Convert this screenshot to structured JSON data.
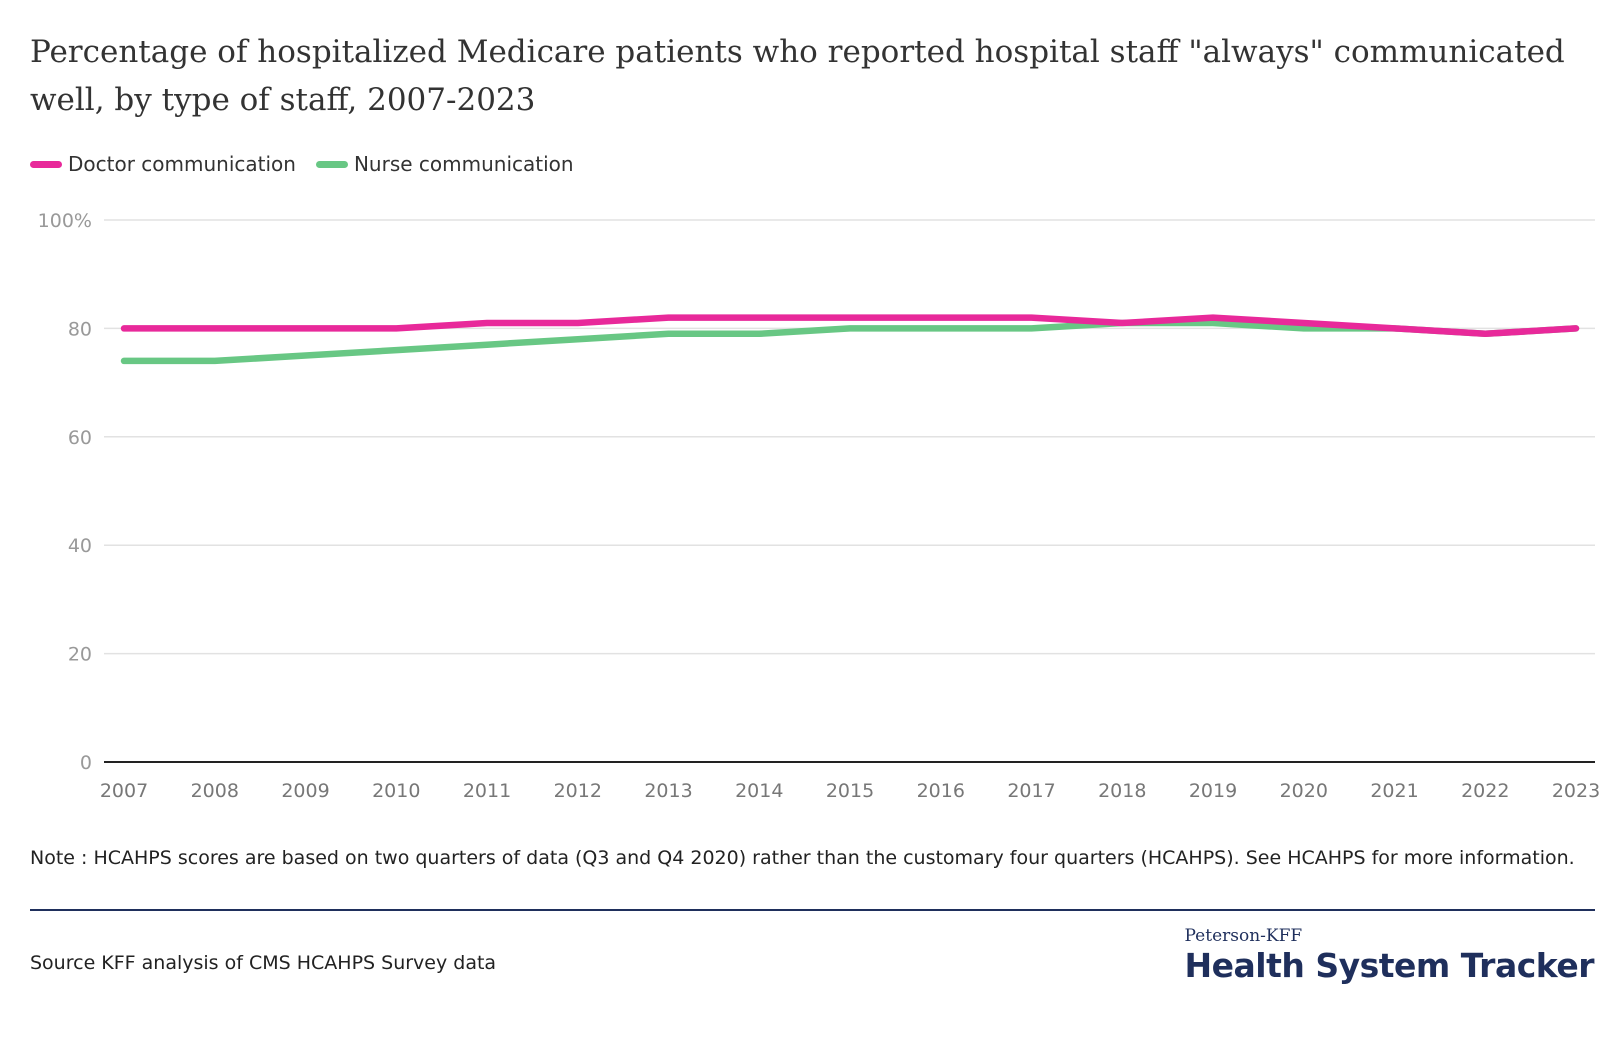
{
  "title": "Percentage of hospitalized Medicare patients who reported hospital staff \"always\" communicated well, by type of staff, 2007-2023",
  "colors": {
    "doctor": "#e8299a",
    "nurse": "#68c784",
    "grid": "#e2e2e2",
    "axis": "#222222",
    "brand": "#1f2f5c"
  },
  "chart_data": {
    "type": "line",
    "title": "Percentage of hospitalized Medicare patients who reported hospital staff \"always\" communicated well, by type of staff, 2007-2023",
    "x": [
      "2007",
      "2008",
      "2009",
      "2010",
      "2011",
      "2012",
      "2013",
      "2014",
      "2015",
      "2016",
      "2017",
      "2018",
      "2019",
      "2020",
      "2021",
      "2022",
      "2023"
    ],
    "series": [
      {
        "name": "Doctor communication",
        "color": "#e8299a",
        "values": [
          80,
          80,
          80,
          80,
          81,
          81,
          82,
          82,
          82,
          82,
          82,
          81,
          82,
          81,
          80,
          79,
          80
        ]
      },
      {
        "name": "Nurse communication",
        "color": "#68c784",
        "values": [
          74,
          74,
          75,
          76,
          77,
          78,
          79,
          79,
          80,
          80,
          80,
          81,
          81,
          80,
          80,
          79,
          80
        ]
      }
    ],
    "y_ticks": [
      "0",
      "20",
      "40",
      "60",
      "80",
      "100%"
    ],
    "y_tick_values": [
      0,
      20,
      40,
      60,
      80,
      100
    ],
    "ylim": [
      0,
      100
    ],
    "xlabel": "",
    "ylabel": "",
    "grid": true,
    "legend": "top-left"
  },
  "note": "Note : HCAHPS scores are based on two quarters of data (Q3 and Q4 2020) rather than the customary four quarters (HCAHPS). See HCAHPS for more information.",
  "source": "Source KFF analysis of CMS HCAHPS Survey data",
  "logo": {
    "top": "Peterson-KFF",
    "main": "Health System Tracker"
  }
}
